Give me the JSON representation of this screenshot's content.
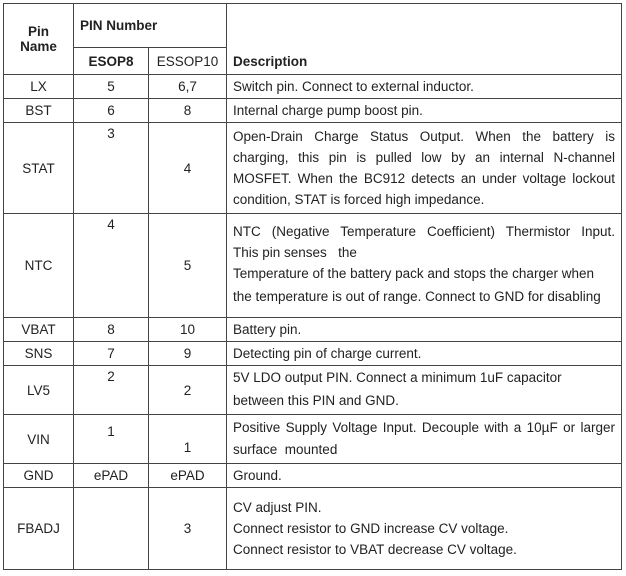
{
  "header": {
    "pin_name": "Pin Name",
    "pin_number": "PIN Number",
    "esop8": "ESOP8",
    "essop10": "ESSOP10",
    "description": "Description"
  },
  "rows": [
    {
      "name": "LX",
      "esop8": "5",
      "essop10": "6,7",
      "desc": [
        "Switch pin. Connect to external inductor."
      ]
    },
    {
      "name": "BST",
      "esop8": "6",
      "essop10": "8",
      "desc": [
        "Internal charge pump boost pin."
      ]
    },
    {
      "name": "STAT",
      "esop8": "3",
      "essop10": "4",
      "desc": [
        "Open-Drain Charge Status Output. When the battery is",
        "charging, this pin is pulled low by an internal N-channel",
        "MOSFET. When the BC912 detects an under voltage lockout",
        "condition, STAT is forced high impedance."
      ]
    },
    {
      "name": "NTC",
      "esop8": "4",
      "essop10": "5",
      "desc": [
        "NTC (Negative Temperature Coefficient) Thermistor Input.",
        "This pin senses   the",
        "Temperature of the battery pack and stops the charger when",
        "the temperature is out of range. Connect to GND for disabling"
      ]
    },
    {
      "name": "VBAT",
      "esop8": "8",
      "essop10": "10",
      "desc": [
        "Battery pin."
      ]
    },
    {
      "name": "SNS",
      "esop8": "7",
      "essop10": "9",
      "desc": [
        "Detecting pin of charge current."
      ]
    },
    {
      "name": "LV5",
      "esop8": "2",
      "essop10": "2",
      "desc": [
        "5V LDO output PIN. Connect a minimum 1uF capacitor",
        "between this PIN and GND."
      ]
    },
    {
      "name": "VIN",
      "esop8": "1",
      "essop10": "1",
      "desc": [
        "Positive Supply Voltage Input. Decouple with a 10µF or larger",
        "surface  mounted"
      ]
    },
    {
      "name": "GND",
      "esop8": "ePAD",
      "essop10": "ePAD",
      "desc": [
        "Ground."
      ]
    },
    {
      "name": "FBADJ",
      "esop8": "",
      "essop10": "3",
      "desc": [
        "CV adjust PIN.",
        "Connect resistor to GND increase CV voltage.",
        "Connect resistor to VBAT decrease CV voltage."
      ]
    }
  ]
}
